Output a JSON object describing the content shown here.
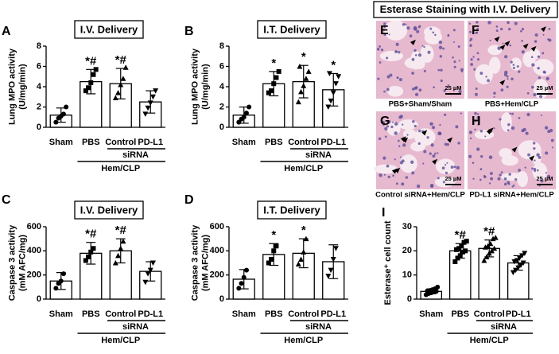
{
  "chart_data": [
    {
      "type": "bar",
      "panel": "A",
      "title": "I.V. Delivery",
      "y_label": [
        "Lung MPO activity",
        "(U/mg/min)"
      ],
      "categories": [
        "Sham",
        "PBS",
        "Control",
        "PD-L1"
      ],
      "values": [
        1.2,
        4.5,
        4.3,
        2.5
      ],
      "errors": [
        0.7,
        1.2,
        1.5,
        1.1
      ],
      "points": [
        [
          0.5,
          0.9,
          1.1,
          1.3,
          2.0
        ],
        [
          3.6,
          3.9,
          4.4,
          5.2,
          5.7
        ],
        [
          2.9,
          3.4,
          4.2,
          4.8,
          5.9
        ],
        [
          1.3,
          1.9,
          2.4,
          3.0,
          3.6
        ]
      ],
      "annotations": [
        null,
        "*#",
        "*#",
        null
      ],
      "subgroup": "siRNA",
      "group": "Hem/CLP",
      "ylim": [
        0,
        8
      ],
      "yticks": [
        0,
        2,
        4,
        6,
        8
      ],
      "color": "#ffffff",
      "markers": [
        "circle",
        "square",
        "triangle-up",
        "triangle-down"
      ]
    },
    {
      "type": "bar",
      "panel": "B",
      "title": "I.T. Delivery",
      "y_label": [
        "Lung MPO activity",
        "(U/mg/min)"
      ],
      "categories": [
        "Sham",
        "PBS",
        "Control",
        "PD-L1"
      ],
      "values": [
        1.2,
        4.3,
        4.5,
        3.7
      ],
      "errors": [
        0.8,
        1.2,
        1.6,
        1.6
      ],
      "points": [
        [
          0.5,
          0.8,
          1.0,
          1.4,
          2.0
        ],
        [
          3.4,
          3.6,
          4.3,
          4.9,
          5.5
        ],
        [
          2.5,
          3.5,
          4.1,
          4.8,
          5.5,
          6.0
        ],
        [
          2.0,
          2.6,
          3.4,
          4.3,
          5.0,
          5.3
        ]
      ],
      "annotations": [
        null,
        "*",
        "*",
        "*"
      ],
      "subgroup": "siRNA",
      "group": "Hem/CLP",
      "ylim": [
        0,
        8
      ],
      "yticks": [
        0,
        2,
        4,
        6,
        8
      ],
      "color": "#ffffff",
      "markers": [
        "circle",
        "square",
        "triangle-up",
        "triangle-down"
      ]
    },
    {
      "type": "bar",
      "panel": "C",
      "title": "I.V. Delivery",
      "y_label": [
        "Caspase 3 activity",
        "(mM AFC/mg)"
      ],
      "categories": [
        "Sham",
        "PBS",
        "Control",
        "PD-L1"
      ],
      "values": [
        150,
        380,
        400,
        230
      ],
      "errors": [
        70,
        90,
        100,
        80
      ],
      "points": [
        [
          90,
          130,
          150,
          210
        ],
        [
          320,
          350,
          390,
          420
        ],
        [
          300,
          360,
          420,
          480
        ],
        [
          140,
          210,
          240,
          300
        ]
      ],
      "annotations": [
        null,
        "*#",
        "*#",
        null
      ],
      "subgroup": "siRNA",
      "group": "Hem/CLP",
      "ylim": [
        0,
        600
      ],
      "yticks": [
        0,
        200,
        400,
        600
      ],
      "color": "#ffffff",
      "markers": [
        "circle",
        "square",
        "triangle-up",
        "triangle-down"
      ]
    },
    {
      "type": "bar",
      "panel": "D",
      "title": "I.T. Delivery",
      "y_label": [
        "Caspase 3 activity",
        "(mM AFC/mg)"
      ],
      "categories": [
        "Sham",
        "PBS",
        "Control",
        "PD-L1"
      ],
      "values": [
        165,
        370,
        380,
        310
      ],
      "errors": [
        80,
        90,
        120,
        140
      ],
      "points": [
        [
          90,
          130,
          180,
          240
        ],
        [
          300,
          330,
          400,
          440
        ],
        [
          290,
          330,
          390,
          500
        ],
        [
          190,
          240,
          330,
          420
        ]
      ],
      "annotations": [
        null,
        "*",
        "*",
        null
      ],
      "subgroup": "siRNA",
      "group": "Hem/CLP",
      "ylim": [
        0,
        600
      ],
      "yticks": [
        0,
        200,
        400,
        600
      ],
      "color": "#ffffff",
      "markers": [
        "circle",
        "square",
        "triangle-up",
        "triangle-down"
      ]
    },
    {
      "type": "bar",
      "panel": "I",
      "title": null,
      "y_label": [
        "Esterase⁺ cell count"
      ],
      "categories": [
        "Sham",
        "PBS",
        "Control",
        "PD-L1"
      ],
      "values": [
        3.2,
        20,
        21,
        15
      ],
      "errors": [
        1,
        3,
        3.5,
        3
      ],
      "points": [
        [
          1.8,
          2.3,
          2.6,
          3.0,
          3.2,
          3.4,
          3.6,
          3.9,
          4.3,
          5.0
        ],
        [
          15.5,
          17,
          18,
          19.5,
          20,
          20.5,
          21,
          22,
          23.5,
          24
        ],
        [
          16,
          17.5,
          19,
          20,
          21,
          21.5,
          22,
          23,
          25,
          25.5
        ],
        [
          11,
          12,
          13,
          14,
          15,
          15.5,
          16,
          17,
          18,
          19
        ]
      ],
      "annotations": [
        null,
        "*#",
        "*#",
        null
      ],
      "subgroup": "siRNA",
      "group": "Hem/CLP",
      "ylim": [
        0,
        30
      ],
      "yticks": [
        0,
        10,
        20,
        30
      ],
      "color": "#ffffff",
      "markers": [
        "circle",
        "square",
        "triangle-up",
        "triangle-down"
      ]
    }
  ],
  "micrographs": {
    "title": "Esterase Staining with I.V. Delivery",
    "images": [
      {
        "panel": "E",
        "caption": "PBS+Sham/Sham",
        "scale": "25 µM"
      },
      {
        "panel": "F",
        "caption": "PBS+Hem/CLP",
        "scale": "25 µM"
      },
      {
        "panel": "G",
        "caption": "Control siRNA+Hem/CLP",
        "scale": "25 µM"
      },
      {
        "panel": "H",
        "caption": "PD-L1 siRNA+Hem/CLP",
        "scale": "25 µM"
      }
    ]
  }
}
